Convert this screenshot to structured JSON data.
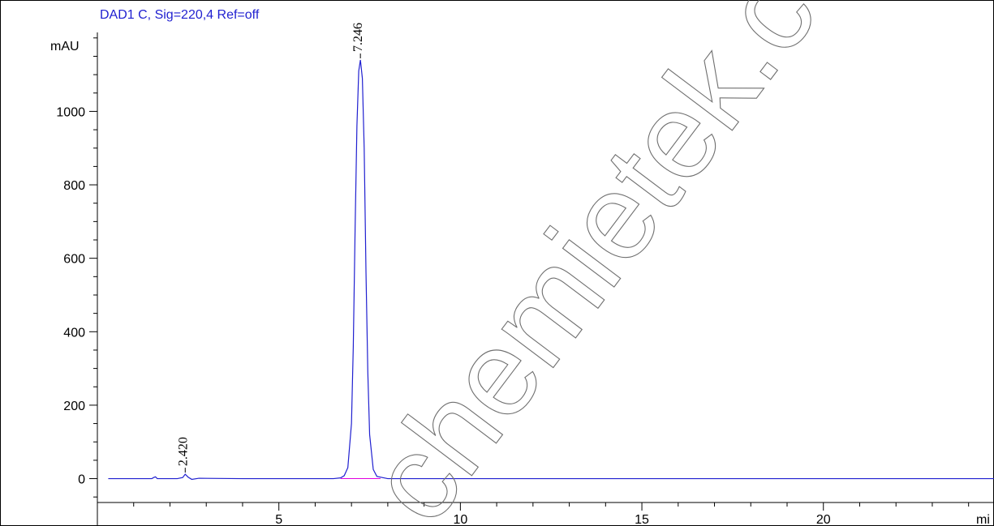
{
  "chart_data": {
    "type": "line",
    "title": "DAD1 C, Sig=220,4 Ref=off",
    "ylabel": "mAU",
    "xlabel": "mi",
    "xlim": [
      0,
      24.7
    ],
    "ylim": [
      -65,
      1215
    ],
    "x_ticks": [
      5,
      10,
      15,
      20
    ],
    "y_ticks": [
      0,
      200,
      400,
      600,
      800,
      1000
    ],
    "grid": false,
    "series": [
      {
        "color": "#2020d0",
        "x": [
          0.3,
          1.5,
          1.55,
          1.6,
          1.65,
          2.2,
          2.35,
          2.42,
          2.5,
          2.6,
          2.8,
          4.0,
          6.0,
          6.5,
          6.7,
          6.8,
          6.9,
          7.0,
          7.05,
          7.1,
          7.15,
          7.2,
          7.246,
          7.3,
          7.35,
          7.4,
          7.45,
          7.5,
          7.6,
          7.7,
          8.0,
          10.0,
          15.0,
          20.0,
          24.7
        ],
        "y": [
          0,
          0,
          3,
          5,
          0,
          0,
          3,
          12,
          4,
          -2,
          1,
          0,
          0,
          0,
          2,
          8,
          30,
          150,
          360,
          680,
          960,
          1110,
          1140,
          1090,
          900,
          560,
          290,
          120,
          25,
          6,
          0,
          0,
          0,
          0,
          0
        ]
      },
      {
        "color": "#e000e0",
        "x": [
          6.7,
          7.8
        ],
        "y": [
          0,
          0
        ]
      }
    ],
    "annotations": [
      {
        "x": 2.42,
        "y": 12,
        "label": "2.420"
      },
      {
        "x": 7.246,
        "y": 1140,
        "label": "7.246"
      }
    ]
  },
  "watermark": {
    "text": "chemietek.com"
  }
}
